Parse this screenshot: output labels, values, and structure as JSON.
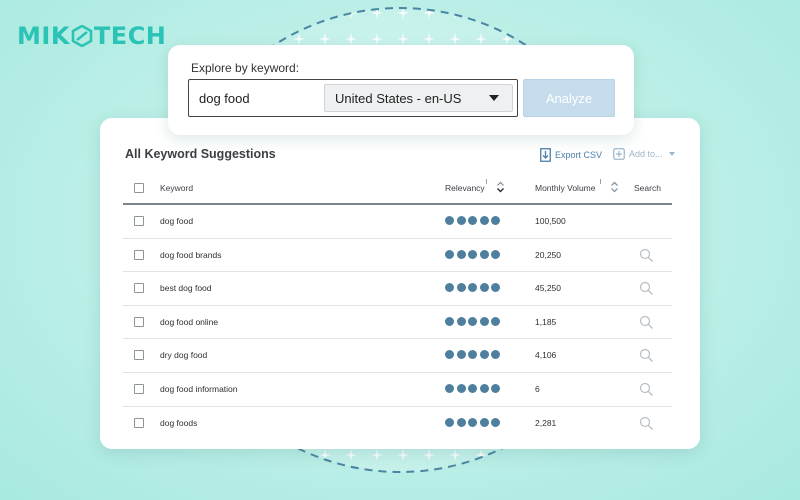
{
  "brand": {
    "left": "MIK",
    "right": "TECH"
  },
  "search": {
    "label": "Explore by keyword:",
    "value": "dog food",
    "country": "United States - en-US",
    "analyze_label": "Analyze"
  },
  "results": {
    "title": "All Keyword Suggestions",
    "export_label": "Export CSV",
    "add_label": "Add to...",
    "columns": {
      "keyword": "Keyword",
      "relevancy": "Relevancy",
      "volume": "Monthly Volume",
      "search": "Search"
    },
    "rows": [
      {
        "keyword": "dog food",
        "relevancy": 5,
        "volume": "100,500"
      },
      {
        "keyword": "dog food brands",
        "relevancy": 5,
        "volume": "20,250"
      },
      {
        "keyword": "best dog food",
        "relevancy": 5,
        "volume": "45,250"
      },
      {
        "keyword": "dog food online",
        "relevancy": 5,
        "volume": "1,185"
      },
      {
        "keyword": "dry dog food",
        "relevancy": 5,
        "volume": "4,106"
      },
      {
        "keyword": "dog food information",
        "relevancy": 5,
        "volume": "6"
      },
      {
        "keyword": "dog foods",
        "relevancy": 5,
        "volume": "2,281"
      }
    ]
  },
  "colors": {
    "accent": "#2bc3b6",
    "dot": "#4e7f9e",
    "link": "#4a7fa8",
    "button_disabled": "#c5dcec"
  }
}
